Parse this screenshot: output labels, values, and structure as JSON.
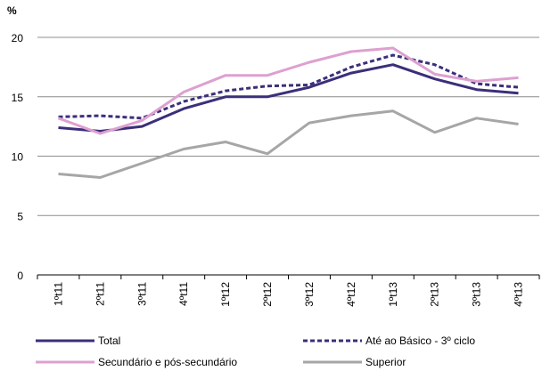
{
  "chart_data": {
    "type": "line",
    "y_label": "%",
    "categories": [
      "1ºt11",
      "2ºt11",
      "3ºt11",
      "4ºt11",
      "1ºt12",
      "2ºt12",
      "3ºt12",
      "4ºt12",
      "1ºt13",
      "2ºt13",
      "3ºt13",
      "4ºt13"
    ],
    "series": [
      {
        "name": "Total",
        "color": "#3b2f7a",
        "dashed": false,
        "values": [
          12.4,
          12.1,
          12.5,
          14.0,
          15.0,
          15.0,
          15.8,
          17.0,
          17.7,
          16.5,
          15.6,
          15.3
        ]
      },
      {
        "name": "Até ao Básico - 3º ciclo",
        "color": "#3b2f7a",
        "dashed": true,
        "values": [
          13.3,
          13.4,
          13.2,
          14.6,
          15.5,
          15.9,
          16.0,
          17.5,
          18.5,
          17.7,
          16.1,
          15.8
        ]
      },
      {
        "name": "Secundário e pós-secundário",
        "color": "#dda0d0",
        "dashed": false,
        "values": [
          13.2,
          11.9,
          13.0,
          15.4,
          16.8,
          16.8,
          17.9,
          18.8,
          19.1,
          16.9,
          16.3,
          16.6
        ]
      },
      {
        "name": "Superior",
        "color": "#a6a6a6",
        "dashed": false,
        "values": [
          8.5,
          8.2,
          9.4,
          10.6,
          11.2,
          10.2,
          12.8,
          13.4,
          13.8,
          12.0,
          13.2,
          12.7
        ]
      }
    ],
    "ylim": [
      0,
      20
    ],
    "yticks": [
      0,
      5,
      10,
      15,
      20
    ],
    "grid": true
  }
}
